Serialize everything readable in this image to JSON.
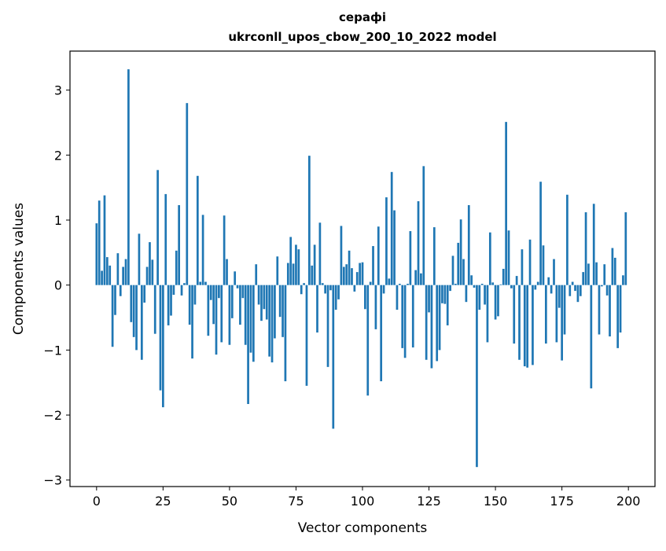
{
  "chart_data": {
    "type": "bar",
    "title": "серафі",
    "subtitle": "ukrconll_upos_cbow_200_10_2022 model",
    "xlabel": "Vector components",
    "ylabel": "Components values",
    "xlim": [
      -10,
      210
    ],
    "ylim": [
      -3.1,
      3.6
    ],
    "grid": false,
    "bar_color": "#1f77b4",
    "x_ticks": [
      0,
      25,
      50,
      75,
      100,
      125,
      150,
      175,
      200
    ],
    "y_ticks": [
      -3,
      -2,
      -1,
      0,
      1,
      2,
      3
    ],
    "x_tick_labels": [
      "0",
      "25",
      "50",
      "75",
      "100",
      "125",
      "150",
      "175",
      "200"
    ],
    "y_tick_labels": [
      "−3",
      "−2",
      "−1",
      "0",
      "1",
      "2",
      "3"
    ],
    "values": [
      0.95,
      1.3,
      0.22,
      1.38,
      0.43,
      0.3,
      -0.95,
      -0.46,
      0.49,
      -0.17,
      0.28,
      0.4,
      3.32,
      -0.57,
      -0.8,
      -1.0,
      0.79,
      -1.15,
      -0.27,
      0.28,
      0.66,
      0.39,
      -0.75,
      1.77,
      -1.62,
      -1.88,
      1.4,
      -0.62,
      -0.47,
      -0.15,
      0.53,
      1.23,
      -0.16,
      0.03,
      2.8,
      -0.61,
      -1.13,
      -0.3,
      1.68,
      0.05,
      1.08,
      0.05,
      -0.78,
      -0.23,
      -0.6,
      -1.07,
      -0.2,
      -0.88,
      1.07,
      0.4,
      -0.92,
      -0.51,
      0.21,
      -0.05,
      -0.61,
      -0.2,
      -0.92,
      -1.83,
      -1.04,
      -1.18,
      0.32,
      -0.3,
      -0.55,
      -0.37,
      -0.53,
      -1.1,
      -1.19,
      -0.82,
      0.44,
      -0.49,
      -0.8,
      -1.48,
      0.34,
      0.74,
      0.33,
      0.62,
      0.55,
      -0.14,
      0.03,
      -1.55,
      1.99,
      0.3,
      0.62,
      -0.73,
      0.96,
      0.03,
      -0.13,
      -1.26,
      -0.08,
      -2.21,
      -0.38,
      -0.22,
      0.91,
      0.28,
      0.32,
      0.53,
      0.26,
      -0.1,
      0.2,
      0.34,
      0.35,
      -0.37,
      -1.7,
      0.05,
      0.6,
      -0.68,
      0.9,
      -1.48,
      -0.13,
      1.35,
      0.1,
      1.74,
      1.15,
      -0.38,
      0.02,
      -0.97,
      -1.12,
      0.02,
      0.83,
      -0.96,
      0.23,
      1.29,
      0.18,
      1.83,
      -1.15,
      -0.42,
      -1.28,
      0.89,
      -1.17,
      -1.0,
      -0.28,
      -0.29,
      -0.62,
      -0.09,
      0.45,
      0.02,
      0.65,
      1.01,
      0.4,
      -0.26,
      1.23,
      0.15,
      -0.04,
      -2.8,
      -0.38,
      0.02,
      -0.3,
      -0.88,
      0.81,
      0.04,
      -0.53,
      -0.48,
      0.01,
      0.25,
      2.51,
      0.84,
      -0.05,
      -0.9,
      0.14,
      -1.15,
      0.55,
      -1.25,
      -1.27,
      0.7,
      -1.23,
      -0.07,
      0.05,
      1.59,
      0.61,
      -0.9,
      0.12,
      -0.13,
      0.4,
      -0.88,
      -0.35,
      -1.16,
      -0.76,
      1.39,
      -0.17,
      0.05,
      -0.09,
      -0.26,
      -0.17,
      0.2,
      1.12,
      0.33,
      -1.59,
      1.25,
      0.35,
      -0.76,
      -0.02,
      0.32,
      -0.16,
      -0.79,
      0.57,
      0.42,
      -0.97,
      -0.73,
      0.15,
      1.12
    ]
  }
}
